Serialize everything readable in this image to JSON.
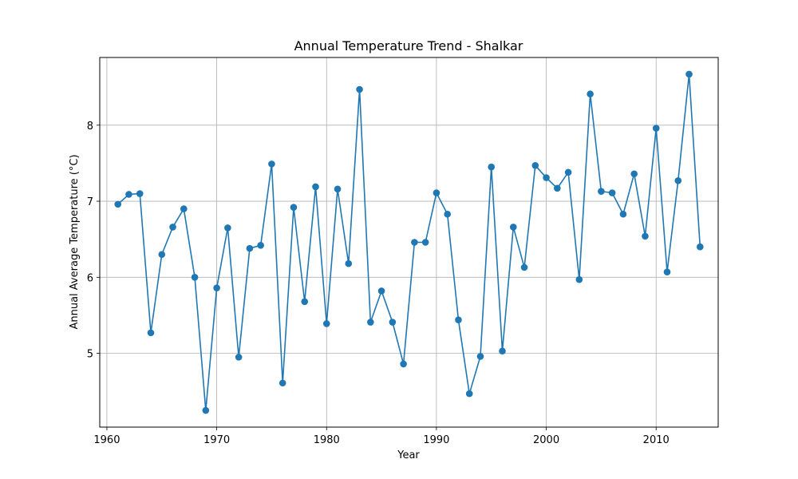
{
  "chart_data": {
    "type": "line",
    "title": "Annual Temperature Trend - Shalkar",
    "xlabel": "Year",
    "ylabel": "Annual Average Temperature (°C)",
    "xlim": [
      1959.35,
      2015.65
    ],
    "ylim": [
      4.03,
      8.89
    ],
    "xticks": [
      1960,
      1970,
      1980,
      1990,
      2000,
      2010
    ],
    "yticks": [
      5,
      6,
      7,
      8
    ],
    "grid": true,
    "markers": true,
    "color": "#1f77b4",
    "series": [
      {
        "x": [
          1961,
          1962,
          1963,
          1964,
          1965,
          1966,
          1967,
          1968,
          1969,
          1970,
          1971,
          1972,
          1973,
          1974,
          1975,
          1976,
          1977,
          1978,
          1979,
          1980,
          1981,
          1982,
          1983,
          1984,
          1985,
          1986,
          1987,
          1988,
          1989,
          1990,
          1991,
          1992,
          1993,
          1994,
          1995,
          1996,
          1997,
          1998,
          1999,
          2000,
          2001,
          2002,
          2003,
          2004,
          2005,
          2006,
          2007,
          2008,
          2009,
          2010,
          2011,
          2012,
          2013,
          2014
        ],
        "values": [
          6.96,
          7.09,
          7.1,
          5.27,
          6.3,
          6.66,
          6.9,
          6.0,
          4.25,
          5.86,
          6.65,
          4.95,
          6.38,
          6.42,
          7.49,
          4.61,
          6.92,
          5.68,
          7.19,
          5.39,
          7.16,
          6.18,
          8.47,
          5.41,
          5.82,
          5.41,
          4.86,
          6.46,
          6.46,
          7.11,
          6.83,
          5.44,
          4.47,
          4.96,
          7.45,
          5.03,
          6.66,
          6.13,
          7.47,
          7.31,
          7.17,
          7.38,
          5.97,
          8.41,
          7.13,
          7.11,
          6.83,
          7.36,
          6.54,
          7.96,
          6.07,
          7.27,
          8.67,
          6.4
        ]
      }
    ]
  }
}
